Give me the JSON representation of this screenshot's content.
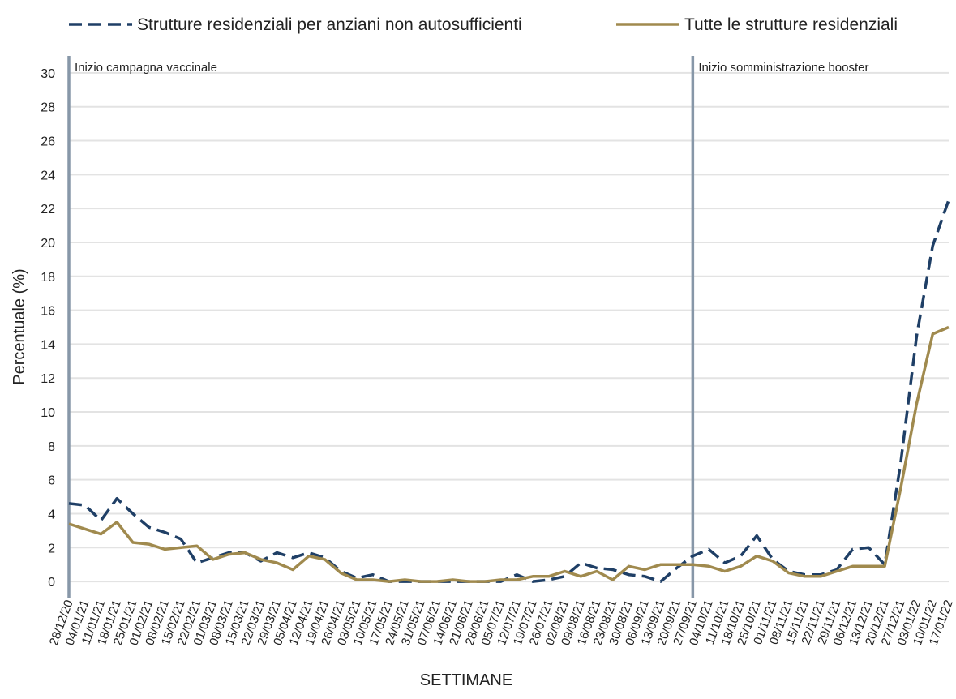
{
  "chart_data": {
    "type": "line",
    "x_label": "SETTIMANE",
    "y_label": "Percentuale (%)",
    "categories": [
      "28/12/20",
      "04/01/21",
      "11/01/21",
      "18/01/21",
      "25/01/21",
      "01/02/21",
      "08/02/21",
      "15/02/21",
      "22/02/21",
      "01/03/21",
      "08/03/21",
      "15/03/21",
      "22/03/21",
      "29/03/21",
      "05/04/21",
      "12/04/21",
      "19/04/21",
      "26/04/21",
      "03/05/21",
      "10/05/21",
      "17/05/21",
      "24/05/21",
      "31/05/21",
      "07/06/21",
      "14/06/21",
      "21/06/21",
      "28/06/21",
      "05/07/21",
      "12/07/21",
      "19/07/21",
      "26/07/21",
      "02/08/21",
      "09/08/21",
      "16/08/21",
      "23/08/21",
      "30/08/21",
      "06/09/21",
      "13/09/21",
      "20/09/21",
      "27/09/21",
      "04/10/21",
      "11/10/21",
      "18/10/21",
      "25/10/21",
      "01/11/21",
      "08/11/21",
      "15/11/21",
      "22/11/21",
      "29/11/21",
      "06/12/21",
      "13/12/21",
      "20/12/21",
      "27/12/21",
      "03/01/22",
      "10/01/22",
      "17/01/22"
    ],
    "series": [
      {
        "name": "Strutture residenziali per anziani non autosufficienti",
        "color": "#1f3f66",
        "dash": true,
        "values": [
          4.6,
          4.5,
          3.6,
          4.9,
          4.0,
          3.2,
          2.9,
          2.5,
          1.1,
          1.4,
          1.7,
          1.7,
          1.2,
          1.7,
          1.4,
          1.7,
          1.4,
          0.6,
          0.2,
          0.4,
          0.0,
          0.0,
          0.0,
          0.0,
          0.0,
          0.0,
          0.0,
          0.0,
          0.4,
          0.0,
          0.1,
          0.3,
          1.1,
          0.8,
          0.7,
          0.4,
          0.3,
          0.0,
          0.8,
          1.5,
          1.9,
          1.1,
          1.5,
          2.7,
          1.3,
          0.6,
          0.4,
          0.4,
          0.7,
          1.9,
          2.0,
          1.0,
          7.0,
          14.5,
          19.8,
          22.5
        ]
      },
      {
        "name": "Tutte le strutture residenziali",
        "color": "#a08a4e",
        "dash": false,
        "values": [
          3.4,
          3.1,
          2.8,
          3.5,
          2.3,
          2.2,
          1.9,
          2.0,
          2.1,
          1.3,
          1.6,
          1.7,
          1.3,
          1.1,
          0.7,
          1.5,
          1.3,
          0.5,
          0.1,
          0.1,
          0.0,
          0.1,
          0.0,
          0.0,
          0.1,
          0.0,
          0.0,
          0.1,
          0.1,
          0.3,
          0.3,
          0.6,
          0.3,
          0.6,
          0.1,
          0.9,
          0.7,
          1.0,
          1.0,
          1.0,
          0.9,
          0.6,
          0.9,
          1.5,
          1.2,
          0.5,
          0.3,
          0.3,
          0.6,
          0.9,
          0.9,
          0.9,
          5.5,
          10.5,
          14.6,
          15.0
        ]
      }
    ],
    "annotations": [
      {
        "x": "28/12/20",
        "label": "Inizio campagna vaccinale"
      },
      {
        "x": "27/09/21",
        "label": "Inizio somministrazione booster"
      }
    ],
    "ylim": [
      -1,
      31
    ],
    "yticks": [
      0,
      2,
      4,
      6,
      8,
      10,
      12,
      14,
      16,
      18,
      20,
      22,
      24,
      26,
      28,
      30
    ],
    "grid": true,
    "legend": "top"
  }
}
